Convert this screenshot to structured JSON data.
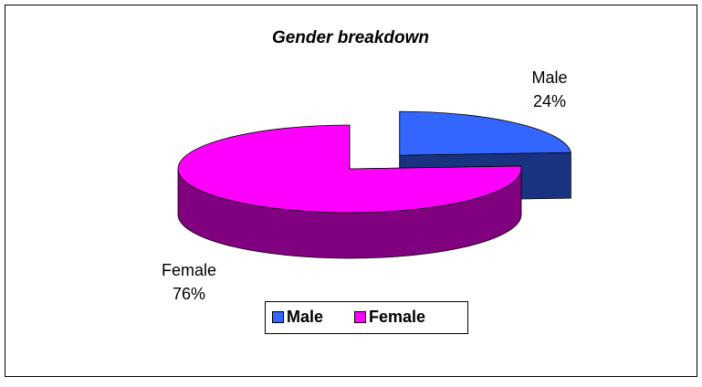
{
  "chart_data": {
    "type": "pie",
    "title": "Gender breakdown",
    "categories": [
      "Male",
      "Female"
    ],
    "values": [
      24,
      76
    ],
    "value_labels": [
      "24%",
      "76%"
    ],
    "colors": [
      "#3366ff",
      "#ff00ff"
    ]
  }
}
